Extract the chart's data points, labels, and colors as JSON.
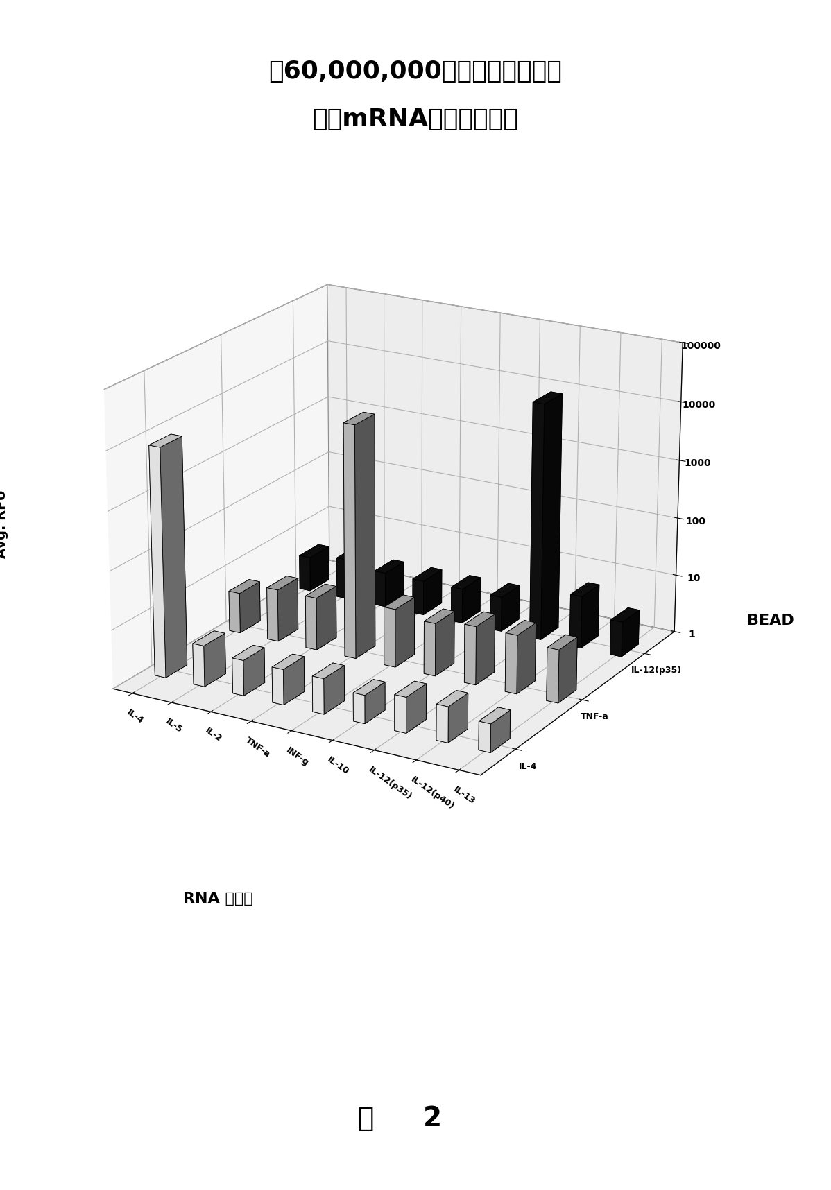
{
  "title_line1": "寶60,000,000个靶标分子进行的",
  "title_line2": "多重mRNA分析的特异性",
  "xlabel_cn": "RNA 转录物",
  "ylabel": "Avg. RFU",
  "bead_label": "BEAD",
  "figure_label_cn": "图",
  "figure_label_num": "2",
  "rna_transcripts": [
    "IL-4",
    "IL-5",
    "IL-2",
    "TNF-a",
    "INF-g",
    "IL-10",
    "IL-12(p35)",
    "IL-12(p40)",
    "IL-13"
  ],
  "beads": [
    "IL-4",
    "TNF-a",
    "IL-12(p35)"
  ],
  "bead_colors": [
    "white",
    "#cccccc",
    "#111111"
  ],
  "bead_edgecolors": [
    "black",
    "black",
    "black"
  ],
  "data": {
    "IL-4": [
      8000,
      5,
      4,
      4,
      4,
      3,
      4,
      4,
      3
    ],
    "TNF-a": [
      5,
      8,
      8,
      10000,
      10,
      8,
      10,
      10,
      8
    ],
    "IL-12(p35)": [
      4,
      5,
      4,
      4,
      4,
      4,
      12000,
      8,
      4
    ]
  },
  "ylim_log_min": 0,
  "ylim_log_max": 5,
  "background_color": "white",
  "elev": 20,
  "azim": -60
}
